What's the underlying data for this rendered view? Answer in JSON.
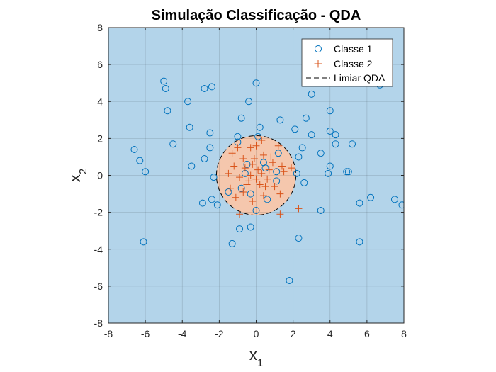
{
  "chart_data": {
    "type": "scatter",
    "title": "Simulação Classificação - QDA",
    "xlabel": {
      "base": "x",
      "sub": "1"
    },
    "ylabel": {
      "base": "x",
      "sub": "2"
    },
    "xlim": [
      -8,
      8
    ],
    "ylim": [
      -8,
      8
    ],
    "xticks": [
      -8,
      -6,
      -4,
      -2,
      0,
      2,
      4,
      6,
      8
    ],
    "yticks": [
      -8,
      -6,
      -4,
      -2,
      0,
      2,
      4,
      6,
      8
    ],
    "grid": true,
    "legend_position": "top-right",
    "colors": {
      "region_class1": "#b3d4ea",
      "region_class2": "#f5c7ad",
      "class1_marker": "#0072bd",
      "class2_marker": "#d95319",
      "boundary": "#000000"
    },
    "decision_boundary": {
      "name": "Limiar QDA",
      "shape": "circle",
      "center": [
        0.0,
        0.0
      ],
      "radius": 2.15
    },
    "series": [
      {
        "name": "Classe 1",
        "marker": "circle",
        "points": [
          [
            -5.0,
            5.1
          ],
          [
            -4.9,
            4.7
          ],
          [
            -4.8,
            3.5
          ],
          [
            -3.7,
            4.0
          ],
          [
            -2.8,
            4.7
          ],
          [
            -2.4,
            4.8
          ],
          [
            -0.4,
            4.0
          ],
          [
            0.0,
            5.0
          ],
          [
            -0.8,
            3.1
          ],
          [
            1.3,
            3.0
          ],
          [
            3.0,
            4.4
          ],
          [
            4.0,
            3.5
          ],
          [
            6.7,
            4.9
          ],
          [
            -6.6,
            1.4
          ],
          [
            -6.3,
            0.8
          ],
          [
            -6.0,
            0.2
          ],
          [
            -4.5,
            1.7
          ],
          [
            -3.6,
            2.6
          ],
          [
            -2.5,
            2.3
          ],
          [
            -2.5,
            1.5
          ],
          [
            -2.8,
            0.9
          ],
          [
            -3.5,
            0.5
          ],
          [
            -2.3,
            -0.1
          ],
          [
            -2.4,
            -1.3
          ],
          [
            -2.9,
            -1.5
          ],
          [
            -2.1,
            -1.6
          ],
          [
            -1.0,
            2.1
          ],
          [
            0.2,
            2.6
          ],
          [
            2.1,
            2.5
          ],
          [
            2.7,
            3.1
          ],
          [
            3.0,
            2.2
          ],
          [
            4.0,
            2.4
          ],
          [
            4.3,
            2.2
          ],
          [
            2.5,
            1.5
          ],
          [
            2.3,
            1.0
          ],
          [
            3.5,
            1.2
          ],
          [
            4.3,
            1.7
          ],
          [
            5.2,
            1.7
          ],
          [
            4.0,
            0.5
          ],
          [
            3.9,
            0.1
          ],
          [
            4.9,
            0.2
          ],
          [
            5.0,
            0.2
          ],
          [
            2.6,
            -0.4
          ],
          [
            2.2,
            0.1
          ],
          [
            3.5,
            -1.9
          ],
          [
            2.3,
            -3.4
          ],
          [
            5.6,
            -1.5
          ],
          [
            6.2,
            -1.2
          ],
          [
            7.5,
            -1.3
          ],
          [
            7.9,
            -1.6
          ],
          [
            5.6,
            -3.6
          ],
          [
            -1.3,
            -3.7
          ],
          [
            -0.3,
            -2.8
          ],
          [
            -0.9,
            -2.9
          ],
          [
            -6.1,
            -3.6
          ],
          [
            1.8,
            -5.7
          ],
          [
            -1.0,
            1.8
          ],
          [
            0.1,
            2.1
          ],
          [
            1.2,
            1.2
          ],
          [
            -0.5,
            0.6
          ],
          [
            0.4,
            0.7
          ],
          [
            0.5,
            0.4
          ],
          [
            -0.6,
            0.1
          ],
          [
            1.1,
            0.2
          ],
          [
            -0.8,
            -0.7
          ],
          [
            0.0,
            -1.9
          ],
          [
            -0.3,
            -1.0
          ],
          [
            0.6,
            -1.3
          ],
          [
            1.1,
            -0.3
          ],
          [
            -1.5,
            -0.9
          ]
        ]
      },
      {
        "name": "Classe 2",
        "marker": "plus",
        "points": [
          [
            0.3,
            1.9
          ],
          [
            0.0,
            1.6
          ],
          [
            -1.0,
            1.5
          ],
          [
            -0.3,
            1.5
          ],
          [
            0.4,
            1.1
          ],
          [
            -0.7,
            0.9
          ],
          [
            -1.2,
            0.5
          ],
          [
            -0.6,
            0.4
          ],
          [
            -0.2,
            0.6
          ],
          [
            0.1,
            0.3
          ],
          [
            0.3,
            0.1
          ],
          [
            0.7,
            0.3
          ],
          [
            -0.9,
            -0.1
          ],
          [
            -0.4,
            -0.3
          ],
          [
            0.0,
            -0.2
          ],
          [
            0.5,
            -0.6
          ],
          [
            1.0,
            -0.6
          ],
          [
            -1.4,
            -0.7
          ],
          [
            -0.7,
            -0.9
          ],
          [
            -0.2,
            -1.4
          ],
          [
            0.4,
            -1.1
          ],
          [
            1.3,
            -1.0
          ],
          [
            1.9,
            0.4
          ],
          [
            1.5,
            0.2
          ],
          [
            2.3,
            -1.8
          ],
          [
            1.3,
            -2.1
          ],
          [
            -0.9,
            -2.1
          ],
          [
            -1.3,
            1.2
          ],
          [
            0.9,
            0.7
          ],
          [
            -0.5,
            -0.5
          ],
          [
            0.2,
            -0.5
          ],
          [
            1.2,
            1.6
          ],
          [
            -0.1,
            0.9
          ],
          [
            0.6,
            -0.2
          ],
          [
            -1.1,
            -1.2
          ],
          [
            -0.3,
            0.0
          ],
          [
            0.8,
            1.0
          ],
          [
            1.4,
            0.5
          ],
          [
            -1.5,
            0.1
          ]
        ]
      },
      {
        "name": "Limiar QDA",
        "marker": "dashed-line"
      }
    ]
  }
}
